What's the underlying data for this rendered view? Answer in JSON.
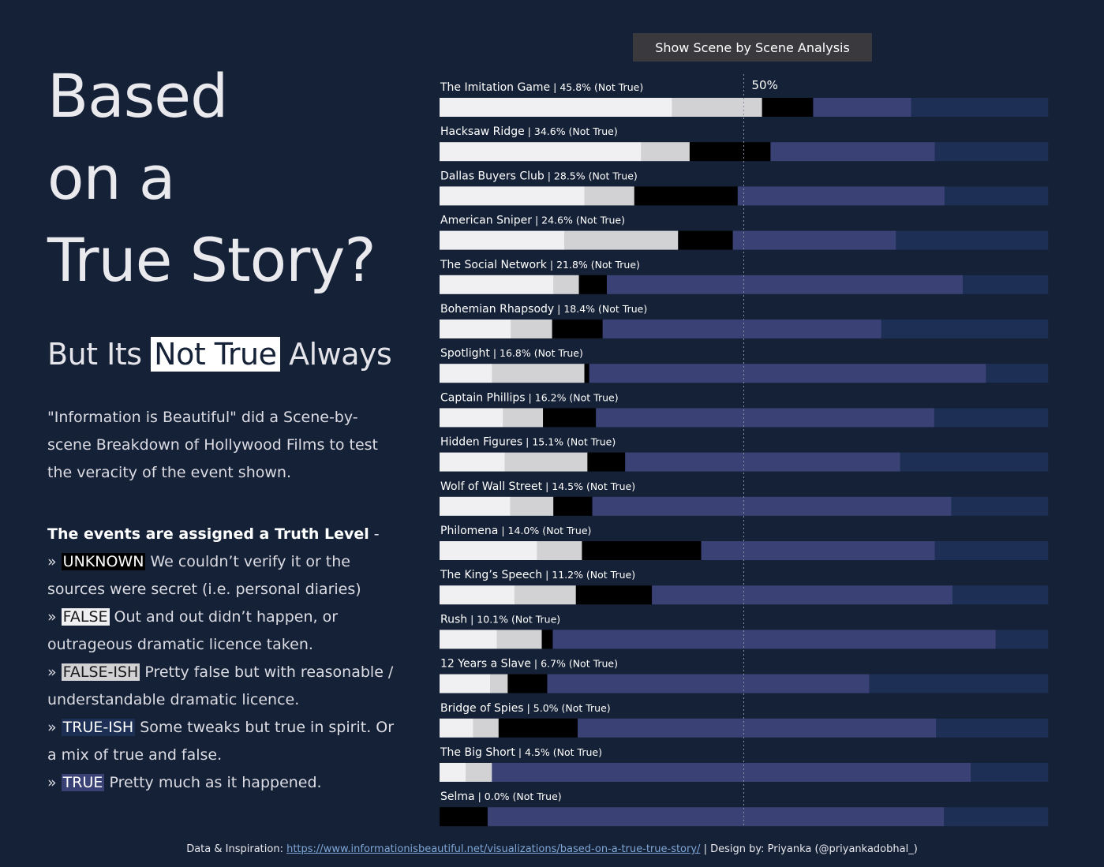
{
  "title": {
    "line1": "Based",
    "line2": "on a",
    "line3": "True Story?"
  },
  "subtitle": {
    "pre": "But Its",
    "highlight": "Not True",
    "post": "Always"
  },
  "intro": "\"Information is Beautiful\" did a Scene-by-scene Breakdown of Hollywood Films to test the veracity of the event shown.",
  "legend": {
    "heading": "The events are assigned a Truth Level",
    "heading_suffix": " -",
    "marker": "»",
    "items": [
      {
        "tag": "UNKNOWN",
        "text": " We couldn’t verify it or the sources were secret (i.e. personal diaries)"
      },
      {
        "tag": "FALSE",
        "text": " Out and out didn’t happen, or outrageous dramatic licence taken."
      },
      {
        "tag": "FALSE-ISH",
        "text": " Pretty false but with reasonable / understandable dramatic licence."
      },
      {
        "tag": "TRUE-ISH",
        "text": " Some tweaks but true in spirit. Or a mix of true and false."
      },
      {
        "tag": "TRUE",
        "text": " Pretty much as it happened."
      }
    ]
  },
  "button_label": "Show Scene by Scene Analysis",
  "footer": {
    "prefix": "Data & Inspiration: ",
    "link": "https://www.informationisbeautiful.net/visualizations/based-on-a-true-true-story/",
    "suffix": " | Design by: Priyanka (@priyankadobhal_)"
  },
  "colors": {
    "background": "#152136",
    "false": "#f0f0f3",
    "false_ish": "#d2d2d5",
    "unknown": "#000000",
    "true": "#3a4175",
    "true_ish": "#1d2f55",
    "reference_line": "#8a8fa3"
  },
  "chart_data": {
    "type": "bar",
    "orientation": "horizontal",
    "stacked": true,
    "normalized": true,
    "reference_line": {
      "value": 50,
      "label": "50%"
    },
    "segment_order": [
      "false",
      "false_ish",
      "unknown",
      "true",
      "true_ish"
    ],
    "films": [
      {
        "title": "The Imitation Game",
        "label": "45.8% (Not True)",
        "segments": [
          38.2,
          14.8,
          8.4,
          16.1,
          22.5
        ]
      },
      {
        "title": "Hacksaw Ridge",
        "label": "34.6% (Not True)",
        "segments": [
          33.1,
          8.0,
          13.3,
          27.0,
          18.6
        ]
      },
      {
        "title": "Dallas Buyers Club",
        "label": "28.5% (Not True)",
        "segments": [
          23.8,
          8.2,
          17.0,
          34.0,
          17.0
        ]
      },
      {
        "title": "American Sniper",
        "label": "24.6% (Not True)",
        "segments": [
          20.5,
          18.7,
          9.0,
          26.8,
          25.0
        ]
      },
      {
        "title": "The Social Network",
        "label": "21.8% (Not True)",
        "segments": [
          18.7,
          4.2,
          4.6,
          58.5,
          14.0
        ]
      },
      {
        "title": "Bohemian Rhapsody",
        "label": "18.4% (Not True)",
        "segments": [
          11.7,
          6.8,
          8.3,
          45.8,
          27.4
        ]
      },
      {
        "title": "Spotlight",
        "label": "16.8% (Not True)",
        "segments": [
          8.6,
          15.2,
          0.8,
          65.2,
          10.2
        ]
      },
      {
        "title": "Captain Phillips",
        "label": "16.2% (Not True)",
        "segments": [
          10.4,
          6.6,
          8.7,
          55.6,
          18.7
        ]
      },
      {
        "title": "Hidden Figures",
        "label": "15.1% (Not True)",
        "segments": [
          10.7,
          13.6,
          6.2,
          45.2,
          24.3
        ]
      },
      {
        "title": "Wolf of Wall Street",
        "label": "14.5% (Not True)",
        "segments": [
          11.6,
          7.1,
          6.4,
          59.0,
          15.9
        ]
      },
      {
        "title": "Philomena",
        "label": "14.0% (Not True)",
        "segments": [
          16.0,
          7.4,
          19.6,
          38.4,
          18.6
        ]
      },
      {
        "title": "The King’s Speech",
        "label": "11.2% (Not True)",
        "segments": [
          12.3,
          10.1,
          12.5,
          49.4,
          15.7
        ]
      },
      {
        "title": "Rush",
        "label": "10.1% (Not True)",
        "segments": [
          9.4,
          7.4,
          1.8,
          72.8,
          8.6
        ]
      },
      {
        "title": "12 Years a Slave",
        "label": "6.7% (Not True)",
        "segments": [
          8.3,
          2.9,
          6.5,
          52.9,
          29.4
        ]
      },
      {
        "title": "Bridge of Spies",
        "label": "5.0% (Not True)",
        "segments": [
          5.5,
          4.2,
          13.0,
          58.9,
          18.4
        ]
      },
      {
        "title": "The Big Short",
        "label": "4.5% (Not True)",
        "segments": [
          4.3,
          4.3,
          0,
          78.7,
          12.7
        ]
      },
      {
        "title": "Selma",
        "label": "0.0% (Not True)",
        "segments": [
          0,
          0,
          7.9,
          75.0,
          17.1
        ]
      }
    ]
  }
}
